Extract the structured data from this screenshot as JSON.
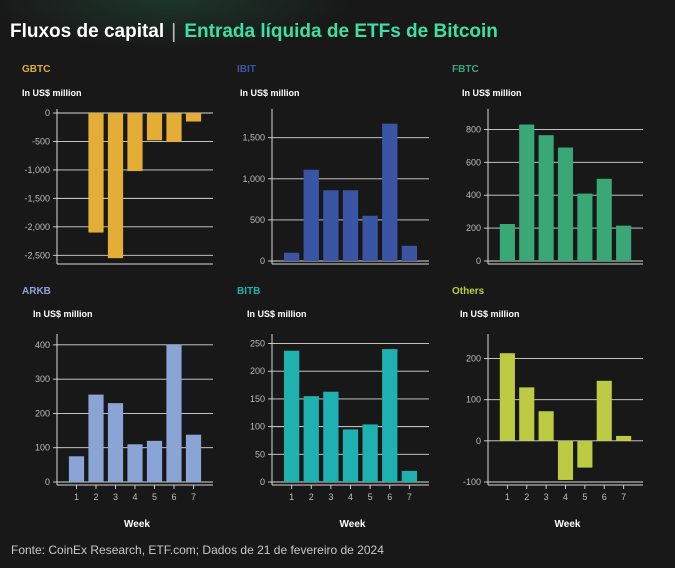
{
  "header": {
    "title": "Fluxos de capital",
    "separator": "|",
    "subtitle": "Entrada líquida de ETFs de Bitcoin"
  },
  "footer": {
    "source": "Fonte: CoinEx Research, ETF.com; Dados de 21 de fevereiro de 2024"
  },
  "colors": {
    "GBTC": "#e3ad36",
    "IBIT": "#3a55a4",
    "FBTC": "#3aa876",
    "ARKB": "#8aa4d6",
    "BITB": "#1fb0b0",
    "Others": "#bccb43"
  },
  "chart_data": [
    {
      "type": "bar",
      "title": "GBTC",
      "ylabel": "In US$ million",
      "xlabel": "",
      "categories": [
        "1",
        "2",
        "3",
        "4",
        "5",
        "6",
        "7"
      ],
      "values": [
        0,
        -2100,
        -2550,
        -1020,
        -480,
        -510,
        -150
      ],
      "ylim": [
        -2600,
        0
      ],
      "yticks": [
        0,
        -500,
        -1000,
        -1500,
        -2000,
        -2500
      ],
      "ytick_labels": [
        "0",
        "-500",
        "-1,000",
        "-1,500",
        "-2,000",
        "-2,500"
      ],
      "show_xticks": false,
      "grid": true
    },
    {
      "type": "bar",
      "title": "IBIT",
      "ylabel": "In US$ million",
      "xlabel": "",
      "categories": [
        "1",
        "2",
        "3",
        "4",
        "5",
        "6",
        "7"
      ],
      "values": [
        100,
        1110,
        860,
        860,
        550,
        1670,
        185
      ],
      "ylim": [
        0,
        1800
      ],
      "yticks": [
        0,
        500,
        1000,
        1500
      ],
      "ytick_labels": [
        "0",
        "500",
        "1,000",
        "1,500"
      ],
      "show_xticks": false,
      "grid": true
    },
    {
      "type": "bar",
      "title": "FBTC",
      "ylabel": "In US$ million",
      "xlabel": "",
      "categories": [
        "1",
        "2",
        "3",
        "4",
        "5",
        "6",
        "7"
      ],
      "values": [
        225,
        830,
        765,
        690,
        410,
        500,
        215
      ],
      "ylim": [
        0,
        900
      ],
      "yticks": [
        0,
        200,
        400,
        600,
        800
      ],
      "ytick_labels": [
        "0",
        "200",
        "400",
        "600",
        "800"
      ],
      "show_xticks": false,
      "grid": true
    },
    {
      "type": "bar",
      "title": "ARKB",
      "ylabel": "In US$ million",
      "xlabel": "Week",
      "categories": [
        "1",
        "2",
        "3",
        "4",
        "5",
        "6",
        "7"
      ],
      "values": [
        75,
        255,
        230,
        110,
        120,
        400,
        138
      ],
      "ylim": [
        0,
        420
      ],
      "yticks": [
        0,
        100,
        200,
        300,
        400
      ],
      "ytick_labels": [
        "0",
        "100",
        "200",
        "300",
        "400"
      ],
      "show_xticks": true,
      "grid": true
    },
    {
      "type": "bar",
      "title": "BITB",
      "ylabel": "In US$ million",
      "xlabel": "Week",
      "categories": [
        "1",
        "2",
        "3",
        "4",
        "5",
        "6",
        "7"
      ],
      "values": [
        237,
        155,
        163,
        95,
        104,
        240,
        20
      ],
      "ylim": [
        0,
        260
      ],
      "yticks": [
        0,
        50,
        100,
        150,
        200,
        250
      ],
      "ytick_labels": [
        "0",
        "50",
        "100",
        "150",
        "200",
        "250"
      ],
      "show_xticks": true,
      "grid": true
    },
    {
      "type": "bar",
      "title": "Others",
      "ylabel": "In US$ million",
      "xlabel": "Week",
      "categories": [
        "1",
        "2",
        "3",
        "4",
        "5",
        "6",
        "7"
      ],
      "values": [
        213,
        130,
        72,
        -95,
        -65,
        146,
        12
      ],
      "ylim": [
        -100,
        250
      ],
      "yticks": [
        -100,
        0,
        100,
        200
      ],
      "ytick_labels": [
        "-100",
        "0",
        "100",
        "200"
      ],
      "show_xticks": true,
      "grid": true
    }
  ]
}
